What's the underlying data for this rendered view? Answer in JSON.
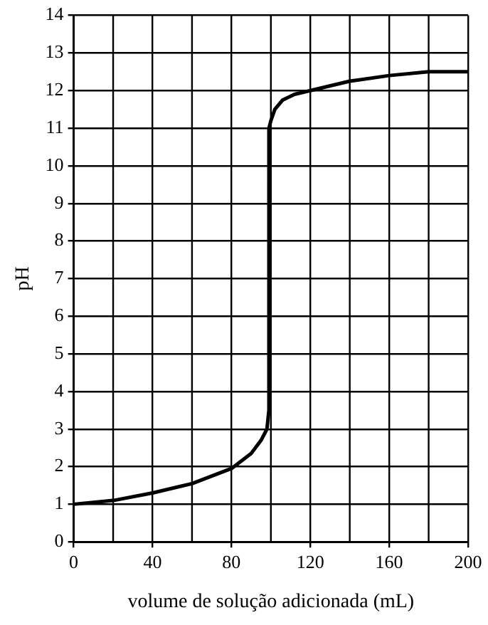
{
  "chart_data": {
    "type": "line",
    "xlabel": "volume de solução adicionada (mL)",
    "ylabel": "pH",
    "x": [
      0,
      20,
      40,
      60,
      80,
      90,
      95,
      98,
      99,
      99,
      100,
      102,
      106,
      112,
      120,
      140,
      160,
      180,
      200
    ],
    "series": [
      {
        "color": "#000000",
        "values": [
          1,
          1.1,
          1.3,
          1.55,
          1.95,
          2.35,
          2.7,
          3,
          3.5,
          11,
          11.2,
          11.5,
          11.75,
          11.9,
          12,
          12.25,
          12.4,
          12.5,
          12.5
        ]
      }
    ],
    "xlim": [
      0,
      200
    ],
    "xticks": [
      0,
      40,
      80,
      120,
      160,
      200
    ],
    "ylim": [
      0,
      14
    ],
    "yticks": [
      0,
      1,
      2,
      3,
      4,
      5,
      6,
      7,
      8,
      9,
      10,
      11,
      12,
      13,
      14
    ],
    "grid": true,
    "legend": false,
    "marker": "none",
    "line_style": "solid"
  }
}
